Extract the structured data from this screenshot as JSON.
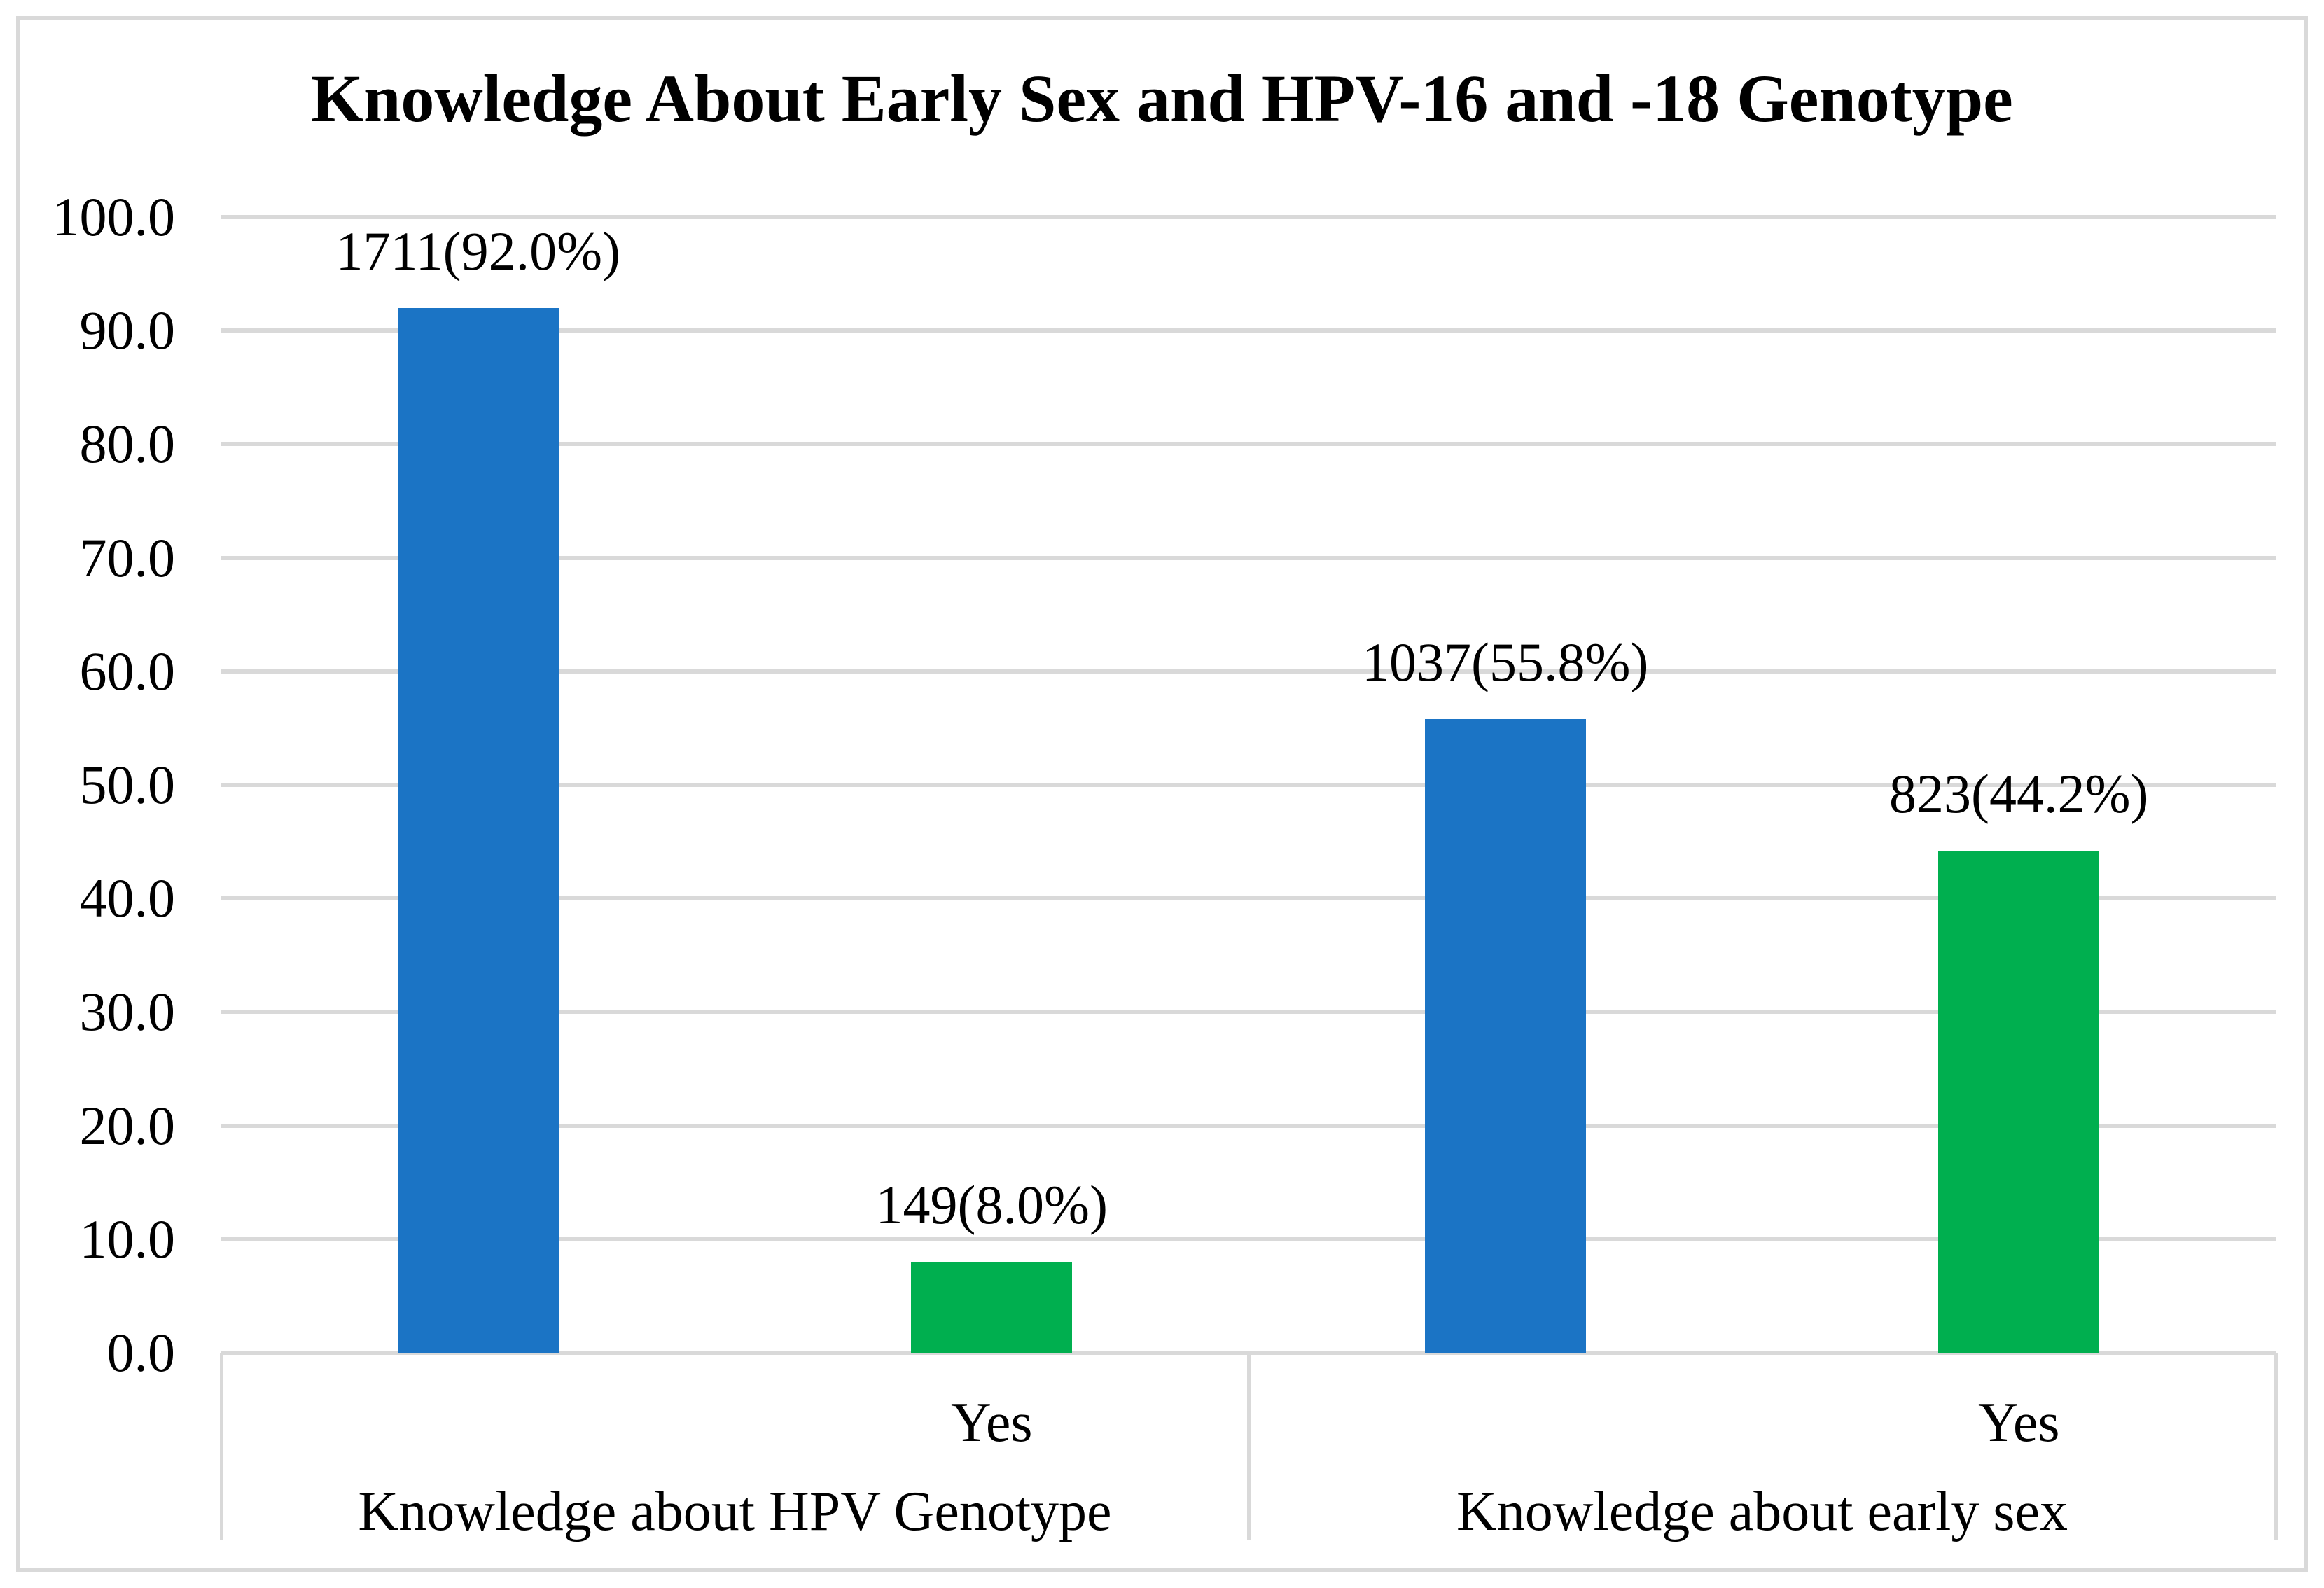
{
  "colors": {
    "blue_series": "#1B74C5",
    "green_series": "#00AF4F",
    "grid": "#D9D9D9",
    "frame": "#D9D9D9",
    "text": "#000000",
    "background": "#FFFFFF"
  },
  "chart_data": {
    "type": "bar",
    "title": "Knowledge About Early Sex and HPV-16 and -18 Genotype",
    "xlabel": "",
    "ylabel": "",
    "ylim": [
      0,
      100
    ],
    "ytick_step": 10,
    "grid": true,
    "legend": "none",
    "yticks": [
      {
        "value": 0,
        "label": "0.0"
      },
      {
        "value": 10,
        "label": "10.0"
      },
      {
        "value": 20,
        "label": "20.0"
      },
      {
        "value": 30,
        "label": "30.0"
      },
      {
        "value": 40,
        "label": "40.0"
      },
      {
        "value": 50,
        "label": "50.0"
      },
      {
        "value": 60,
        "label": "60.0"
      },
      {
        "value": 70,
        "label": "70.0"
      },
      {
        "value": 80,
        "label": "80.0"
      },
      {
        "value": 90,
        "label": "90.0"
      },
      {
        "value": 100,
        "label": "100.0"
      }
    ],
    "groups": [
      {
        "label": "Knowledge about HPV Genotype",
        "bars": [
          {
            "sublabel": "",
            "count": 1711,
            "percent": 92.0,
            "data_label": "1711(92.0%)",
            "color": "#1B74C5"
          },
          {
            "sublabel": "Yes",
            "count": 149,
            "percent": 8.0,
            "data_label": "149(8.0%)",
            "color": "#00AF4F"
          }
        ]
      },
      {
        "label": "Knowledge about early sex",
        "bars": [
          {
            "sublabel": "",
            "count": 1037,
            "percent": 55.8,
            "data_label": "1037(55.8%)",
            "color": "#1B74C5"
          },
          {
            "sublabel": "Yes",
            "count": 823,
            "percent": 44.2,
            "data_label": "823(44.2%)",
            "color": "#00AF4F"
          }
        ]
      }
    ]
  }
}
